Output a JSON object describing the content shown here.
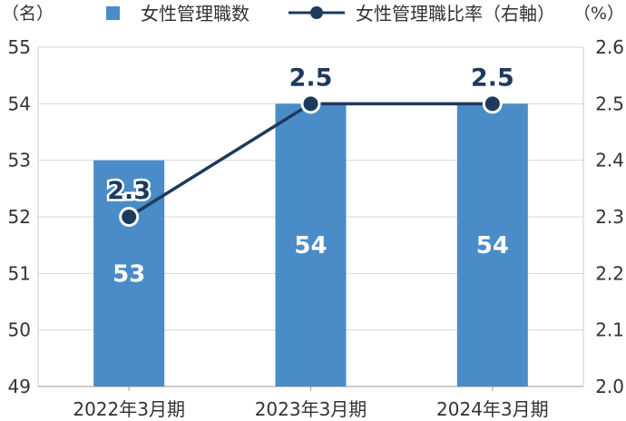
{
  "chart_data": {
    "type": "bar+line",
    "categories": [
      "2022年3月期",
      "2023年3月期",
      "2024年3月期"
    ],
    "series": [
      {
        "name": "女性管理職数",
        "type": "bar",
        "axis": "left",
        "values": [
          53,
          54,
          54
        ],
        "color": "#4a8cc7"
      },
      {
        "name": "女性管理職比率（右軸）",
        "type": "line",
        "axis": "right",
        "values": [
          2.3,
          2.5,
          2.5
        ],
        "labels": [
          "2.3",
          "2.5",
          "2.5"
        ],
        "color": "#1e3a5c"
      }
    ],
    "left_axis": {
      "unit": "（名）",
      "min": 49,
      "max": 55,
      "ticks": [
        "49",
        "50",
        "51",
        "52",
        "53",
        "54",
        "55"
      ]
    },
    "right_axis": {
      "unit": "（%）",
      "min": 2.0,
      "max": 2.6,
      "ticks": [
        "2.0",
        "2.1",
        "2.2",
        "2.3",
        "2.4",
        "2.5",
        "2.6"
      ]
    },
    "grid": true,
    "legend_position": "top"
  }
}
